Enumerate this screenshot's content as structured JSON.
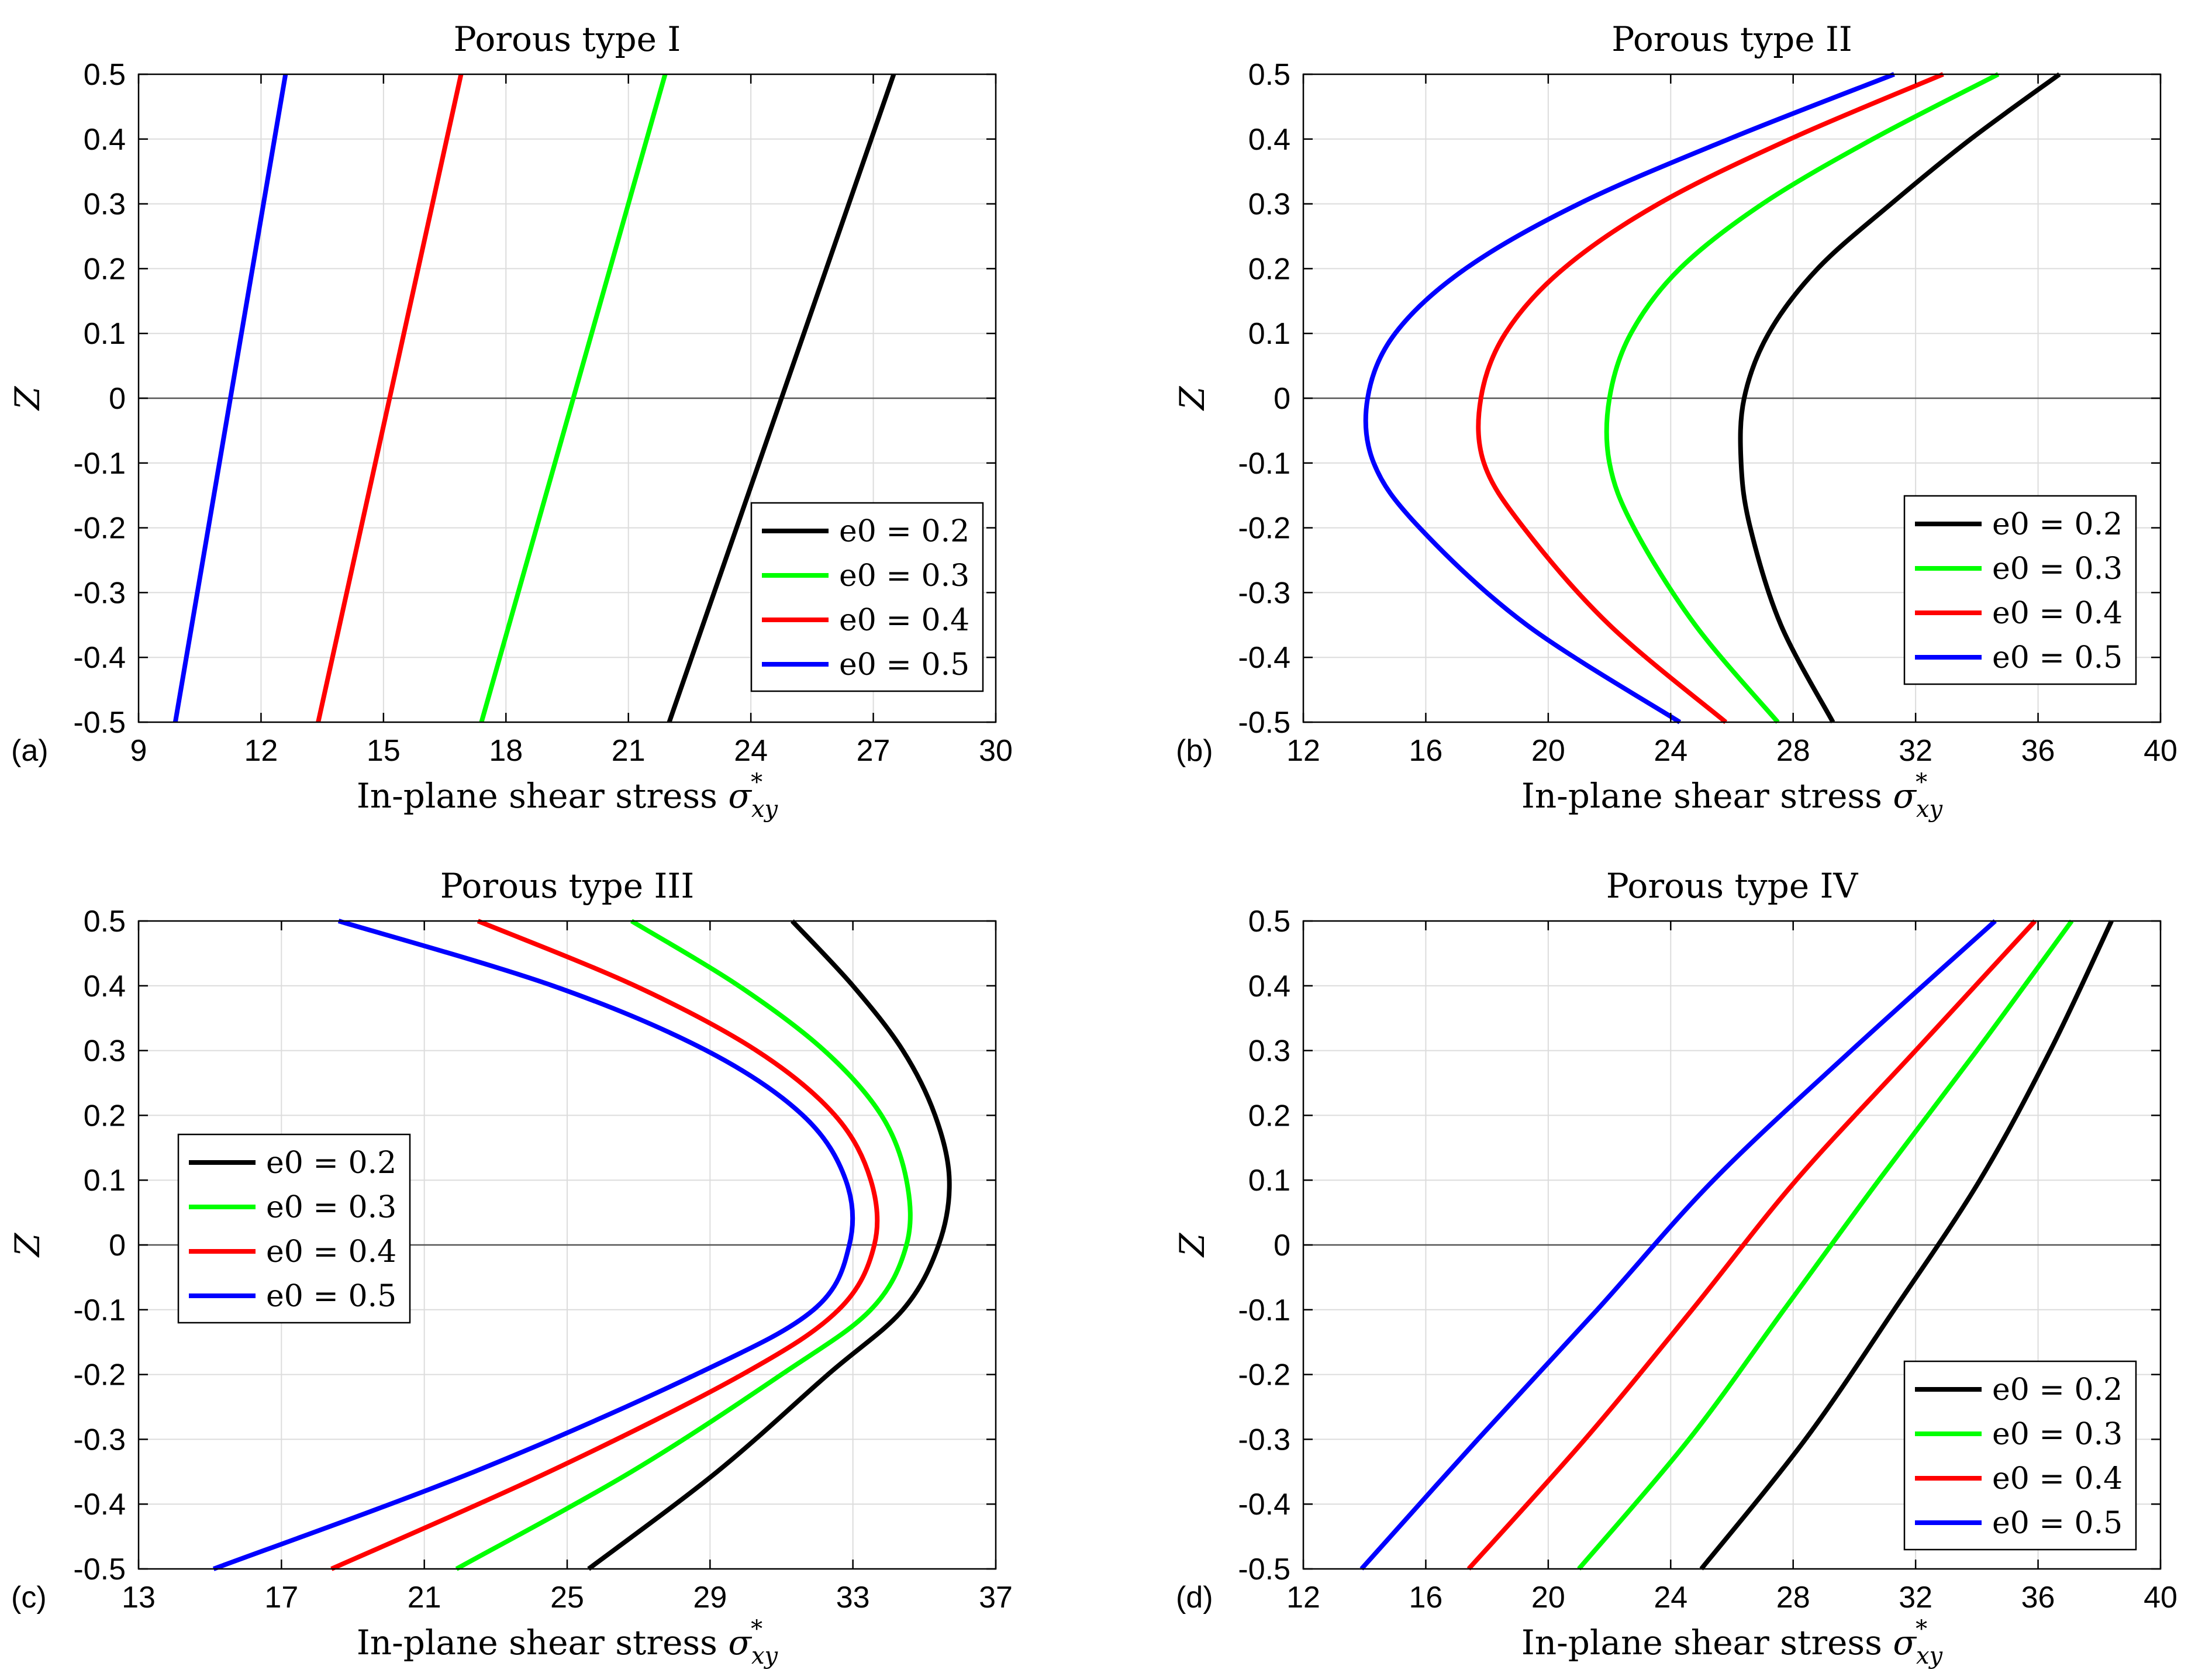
{
  "chart_data": [
    {
      "type": "line",
      "panel_label": "(a)",
      "title": "Porous type I",
      "xlabel_text": "In-plane shear stress ",
      "xlabel_symbol": "σ",
      "xlabel_sub": "xy",
      "xlabel_sup": "*",
      "ylabel": "Z",
      "xlim": [
        9,
        30
      ],
      "ylim": [
        -0.5,
        0.5
      ],
      "xticks": [
        "9",
        "12",
        "15",
        "18",
        "21",
        "24",
        "27",
        "30"
      ],
      "yticks": [
        "-0.5",
        "-0.4",
        "-0.3",
        "-0.2",
        "-0.1",
        "0",
        "0.1",
        "0.2",
        "0.3",
        "0.4",
        "0.5"
      ],
      "legend_position": "bottom-right",
      "grid": true,
      "series": [
        {
          "name": "e0 = 0.2",
          "color": "#000000",
          "x": [
            22.0,
            27.5
          ],
          "y": [
            -0.5,
            0.5
          ]
        },
        {
          "name": "e0 = 0.3",
          "color": "#00ff00",
          "x": [
            17.4,
            21.9
          ],
          "y": [
            -0.5,
            0.5
          ]
        },
        {
          "name": "e0 = 0.4",
          "color": "#ff0000",
          "x": [
            13.4,
            16.9
          ],
          "y": [
            -0.5,
            0.5
          ]
        },
        {
          "name": "e0 = 0.5",
          "color": "#0000ff",
          "x": [
            9.9,
            12.6
          ],
          "y": [
            -0.5,
            0.5
          ]
        }
      ]
    },
    {
      "type": "line",
      "panel_label": "(b)",
      "title": "Porous type II",
      "xlabel_text": "In-plane shear stress ",
      "xlabel_symbol": "σ",
      "xlabel_sub": "xy",
      "xlabel_sup": "*",
      "ylabel": "Z",
      "xlim": [
        12,
        40
      ],
      "ylim": [
        -0.5,
        0.5
      ],
      "xticks": [
        "12",
        "16",
        "20",
        "24",
        "28",
        "32",
        "36",
        "40"
      ],
      "yticks": [
        "-0.5",
        "-0.4",
        "-0.3",
        "-0.2",
        "-0.1",
        "0",
        "0.1",
        "0.2",
        "0.3",
        "0.4",
        "0.5"
      ],
      "legend_position": "bottom-right",
      "grid": true,
      "series": [
        {
          "name": "e0 = 0.2",
          "color": "#000000",
          "x": [
            29.3,
            27.6,
            26.6,
            26.3,
            26.4,
            27.2,
            28.8,
            31.2,
            33.8,
            36.7
          ],
          "y": [
            -0.5,
            -0.35,
            -0.2,
            -0.1,
            0.0,
            0.1,
            0.2,
            0.3,
            0.4,
            0.5
          ]
        },
        {
          "name": "e0 = 0.3",
          "color": "#00ff00",
          "x": [
            27.5,
            24.8,
            22.8,
            22.0,
            22.0,
            22.7,
            24.3,
            27.0,
            30.6,
            34.7
          ],
          "y": [
            -0.5,
            -0.35,
            -0.2,
            -0.1,
            0.0,
            0.1,
            0.2,
            0.3,
            0.4,
            0.5
          ]
        },
        {
          "name": "e0 = 0.4",
          "color": "#ff0000",
          "x": [
            25.8,
            22.0,
            19.2,
            17.9,
            17.8,
            18.6,
            20.5,
            23.6,
            27.9,
            32.9
          ],
          "y": [
            -0.5,
            -0.35,
            -0.2,
            -0.1,
            0.0,
            0.1,
            0.2,
            0.3,
            0.4,
            0.5
          ]
        },
        {
          "name": "e0 = 0.5",
          "color": "#0000ff",
          "x": [
            24.3,
            19.3,
            15.8,
            14.3,
            14.1,
            15.0,
            17.3,
            21.0,
            25.9,
            31.3
          ],
          "y": [
            -0.5,
            -0.35,
            -0.2,
            -0.1,
            0.0,
            0.1,
            0.2,
            0.3,
            0.4,
            0.5
          ]
        }
      ]
    },
    {
      "type": "line",
      "panel_label": "(c)",
      "title": "Porous type III",
      "xlabel_text": "In-plane shear stress ",
      "xlabel_symbol": "σ",
      "xlabel_sub": "xy",
      "xlabel_sup": "*",
      "ylabel": "Z",
      "xlim": [
        13,
        37
      ],
      "ylim": [
        -0.5,
        0.5
      ],
      "xticks": [
        "13",
        "17",
        "21",
        "25",
        "29",
        "33",
        "37"
      ],
      "yticks": [
        "-0.5",
        "-0.4",
        "-0.3",
        "-0.2",
        "-0.1",
        "0",
        "0.1",
        "0.2",
        "0.3",
        "0.4",
        "0.5"
      ],
      "legend_position": "center-left",
      "grid": true,
      "series": [
        {
          "name": "e0 = 0.2",
          "color": "#000000",
          "x": [
            25.6,
            29.2,
            32.3,
            34.4,
            35.4,
            35.7,
            35.3,
            34.4,
            33.0,
            31.3
          ],
          "y": [
            -0.5,
            -0.35,
            -0.2,
            -0.1,
            0.0,
            0.1,
            0.2,
            0.3,
            0.4,
            0.5
          ]
        },
        {
          "name": "e0 = 0.3",
          "color": "#00ff00",
          "x": [
            21.9,
            26.8,
            31.0,
            33.5,
            34.5,
            34.5,
            33.8,
            32.2,
            29.8,
            26.8
          ],
          "y": [
            -0.5,
            -0.35,
            -0.2,
            -0.1,
            0.0,
            0.1,
            0.2,
            0.3,
            0.4,
            0.5
          ]
        },
        {
          "name": "e0 = 0.4",
          "color": "#ff0000",
          "x": [
            18.4,
            24.5,
            29.9,
            32.6,
            33.6,
            33.5,
            32.5,
            30.3,
            26.9,
            22.5
          ],
          "y": [
            -0.5,
            -0.35,
            -0.2,
            -0.1,
            0.0,
            0.1,
            0.2,
            0.3,
            0.4,
            0.5
          ]
        },
        {
          "name": "e0 = 0.5",
          "color": "#0000ff",
          "x": [
            15.1,
            22.4,
            28.6,
            31.9,
            32.9,
            32.8,
            31.6,
            28.9,
            24.6,
            18.6
          ],
          "y": [
            -0.5,
            -0.35,
            -0.2,
            -0.1,
            0.0,
            0.1,
            0.2,
            0.3,
            0.4,
            0.5
          ]
        }
      ]
    },
    {
      "type": "line",
      "panel_label": "(d)",
      "title": "Porous type IV",
      "xlabel_text": "In-plane shear stress ",
      "xlabel_symbol": "σ",
      "xlabel_sub": "xy",
      "xlabel_sup": "*",
      "ylabel": "Z",
      "xlim": [
        12,
        40
      ],
      "ylim": [
        -0.5,
        0.5
      ],
      "xticks": [
        "12",
        "16",
        "20",
        "24",
        "28",
        "32",
        "36",
        "40"
      ],
      "yticks": [
        "-0.5",
        "-0.4",
        "-0.3",
        "-0.2",
        "-0.1",
        "0",
        "0.1",
        "0.2",
        "0.3",
        "0.4",
        "0.5"
      ],
      "legend_position": "bottom-right",
      "grid": true,
      "series": [
        {
          "name": "e0 = 0.2",
          "color": "#000000",
          "x": [
            25.0,
            28.4,
            31.3,
            34.1,
            36.4,
            38.4
          ],
          "y": [
            -0.5,
            -0.3,
            -0.1,
            0.1,
            0.3,
            0.5
          ]
        },
        {
          "name": "e0 = 0.3",
          "color": "#00ff00",
          "x": [
            21.0,
            24.6,
            27.7,
            30.8,
            34.0,
            37.1
          ],
          "y": [
            -0.5,
            -0.3,
            -0.1,
            0.1,
            0.3,
            0.5
          ]
        },
        {
          "name": "e0 = 0.4",
          "color": "#ff0000",
          "x": [
            17.4,
            21.2,
            24.7,
            28.1,
            32.0,
            35.9
          ],
          "y": [
            -0.5,
            -0.3,
            -0.1,
            0.1,
            0.3,
            0.5
          ]
        },
        {
          "name": "e0 = 0.5",
          "color": "#0000ff",
          "x": [
            13.9,
            17.7,
            21.6,
            25.4,
            29.9,
            34.6
          ],
          "y": [
            -0.5,
            -0.3,
            -0.1,
            0.1,
            0.3,
            0.5
          ]
        }
      ]
    }
  ]
}
